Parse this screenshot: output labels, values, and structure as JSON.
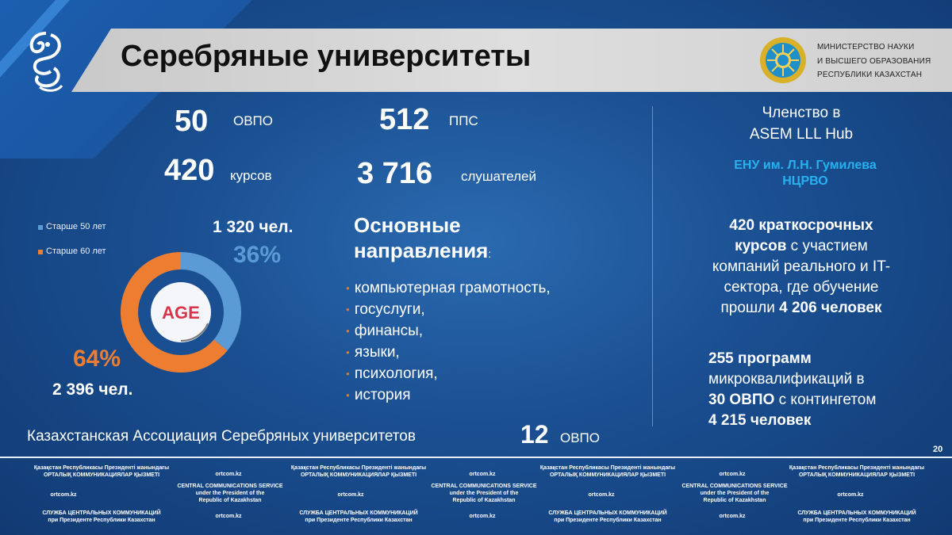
{
  "title": "Серебряные университеты",
  "ministry": [
    "МИНИСТЕРСТВО НАУКИ",
    "И ВЫСШЕГО ОБРАЗОВАНИЯ",
    "РЕСПУБЛИКИ КАЗАХСТАН"
  ],
  "stats": {
    "ovpo_num": "50",
    "ovpo_label": "ОВПО",
    "pps_num": "512",
    "pps_label": "ППС",
    "courses_num": "420",
    "courses_label": "курсов",
    "listeners_num": "3 716",
    "listeners_label": "слушателей"
  },
  "chart_data": {
    "type": "pie",
    "legend": [
      "Старше 50 лет",
      "Старше 60 лет"
    ],
    "values": [
      36,
      64
    ],
    "value_labels": [
      "36%",
      "64%"
    ],
    "counts": [
      "1 320 чел.",
      "2 396 чел."
    ],
    "center_text": "AGE",
    "colors": [
      "#5b9bd5",
      "#ed7d31"
    ]
  },
  "directions": {
    "title_line1": "Основные",
    "title_line2": "направления",
    "title_colon": ":",
    "items": [
      "компьютерная грамотность,",
      "госуслуги,",
      "финансы,",
      "языки,",
      "психология,",
      "история"
    ]
  },
  "association": {
    "text": "Казахстанская Ассоциация Серебряных университетов",
    "num": "12",
    "label": "ОВПО"
  },
  "right": {
    "membership": [
      "Членство  в",
      "ASEM LLL Hub"
    ],
    "orgs": [
      "ЕНУ им. Л.Н. Гумилева",
      "НЦРВО"
    ],
    "block1": {
      "l1": "420 краткосрочных",
      "l2_bold": "курсов",
      "l2_rest": " с участием",
      "l3": "компаний реального и IT-",
      "l4": "сектора, где обучение",
      "l5_pre": "прошли ",
      "l5_bold": "4 206 человек"
    },
    "block2": {
      "l1": "255 программ",
      "l2": "микроквалификаций в",
      "l3_bold": "30 ОВПО",
      "l3_rest": " с контингетом",
      "l4": "4 215 человек"
    }
  },
  "page_number": "20",
  "footer": {
    "kz_line1": "Қазақстан Республикасы Президенті жанындағы",
    "kz_line2": "ОРТАЛЫҚ КОММУНИКАЦИЯЛАР ҚЫЗМЕТІ",
    "site": "ortcom.kz",
    "en_line1": "CENTRAL COMMUNICATIONS SERVICE",
    "en_line2": "under the President of the",
    "en_line3": "Republic of Kazakhstan",
    "ru_line1": "СЛУЖБА ЦЕНТРАЛЬНЫХ КОММУНИКАЦИЙ",
    "ru_line2": "при Президенте Республики Казахстан"
  }
}
